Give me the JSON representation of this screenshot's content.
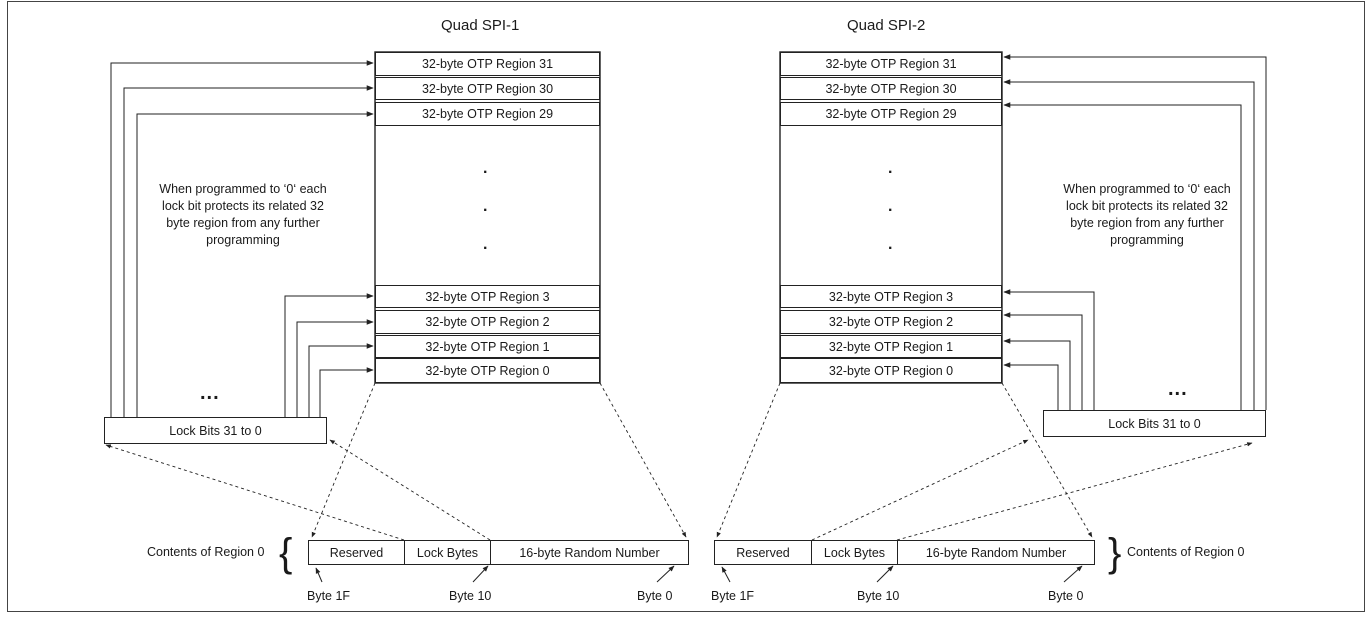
{
  "left": {
    "title": "Quad SPI-1",
    "regions": [
      "32-byte OTP Region 31",
      "32-byte OTP Region 30",
      "32-byte OTP Region 29",
      "32-byte OTP Region 3",
      "32-byte OTP Region 2",
      "32-byte OTP Region 1",
      "32-byte OTP Region 0"
    ],
    "note": "When programmed to ‘0‘ each lock bit protects its related 32 byte region from any further programming",
    "lock_bits": "Lock Bits 31 to 0",
    "ellipsis": "...",
    "vertical_dots": ".",
    "contents_label": "Contents of Region 0",
    "row": [
      "Reserved",
      "Lock Bytes",
      "16-byte Random Number"
    ],
    "bytes": [
      "Byte 1F",
      "Byte 10",
      "Byte 0"
    ]
  },
  "right": {
    "title": "Quad SPI-2",
    "regions": [
      "32-byte OTP Region 31",
      "32-byte OTP Region 30",
      "32-byte OTP Region 29",
      "32-byte OTP Region 3",
      "32-byte OTP Region 2",
      "32-byte OTP Region 1",
      "32-byte OTP Region 0"
    ],
    "note": "When programmed to ‘0‘ each lock bit protects its related 32 byte region from any further programming",
    "lock_bits": "Lock Bits 31 to 0",
    "ellipsis": "...",
    "vertical_dots": ".",
    "contents_label": "Contents of Region 0",
    "row": [
      "Reserved",
      "Lock Bytes",
      "16-byte Random Number"
    ],
    "bytes": [
      "Byte 1F",
      "Byte 10",
      "Byte 0"
    ]
  }
}
